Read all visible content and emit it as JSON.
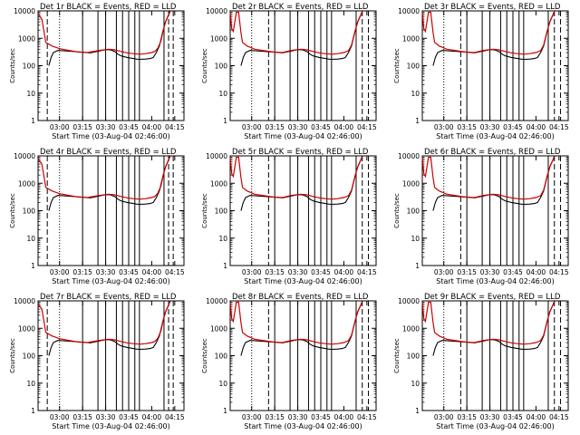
{
  "figure": {
    "time_ticks": [
      "03:00",
      "03:15",
      "03:30",
      "03:45",
      "04:00",
      "04:15"
    ],
    "y_ticks": [
      "1",
      "10",
      "100",
      "1000",
      "10000"
    ],
    "ylabel": "Counts/sec",
    "xlabel": "Start Time (03-Aug-04 02:46:00)",
    "colors": {
      "events": "#000000",
      "lld": "#cc0000"
    }
  },
  "chart_data": [
    {
      "type": "line",
      "title": "Det 1r BLACK = Events, RED = LLD",
      "xlabel": "Start Time (03-Aug-04 02:46:00)",
      "ylabel": "Counts/sec",
      "yscale": "log",
      "ylim": [
        1,
        10000
      ],
      "xlim_minutes": [
        0,
        95
      ],
      "series": [
        {
          "name": "Events",
          "color": "#000000"
        },
        {
          "name": "LLD",
          "color": "#cc0000"
        }
      ]
    },
    {
      "type": "line",
      "title": "Det 2r BLACK = Events, RED = LLD",
      "xlabel": "Start Time (03-Aug-04 02:46:00)",
      "ylabel": "Counts/sec",
      "yscale": "log",
      "ylim": [
        1,
        10000
      ],
      "xlim_minutes": [
        0,
        95
      ],
      "series": [
        {
          "name": "Events",
          "color": "#000000"
        },
        {
          "name": "LLD",
          "color": "#cc0000"
        }
      ]
    },
    {
      "type": "line",
      "title": "Det 3r BLACK = Events, RED = LLD",
      "xlabel": "Start Time (03-Aug-04 02:46:00)",
      "ylabel": "Counts/sec",
      "yscale": "log",
      "ylim": [
        1,
        10000
      ],
      "xlim_minutes": [
        0,
        95
      ],
      "series": [
        {
          "name": "Events",
          "color": "#000000"
        },
        {
          "name": "LLD",
          "color": "#cc0000"
        }
      ]
    },
    {
      "type": "line",
      "title": "Det 4r BLACK = Events, RED = LLD",
      "xlabel": "Start Time (03-Aug-04 02:46:00)",
      "ylabel": "Counts/sec",
      "yscale": "log",
      "ylim": [
        1,
        10000
      ],
      "xlim_minutes": [
        0,
        95
      ],
      "series": [
        {
          "name": "Events",
          "color": "#000000"
        },
        {
          "name": "LLD",
          "color": "#cc0000"
        }
      ]
    },
    {
      "type": "line",
      "title": "Det 5r BLACK = Events, RED = LLD",
      "xlabel": "Start Time (03-Aug-04 02:46:00)",
      "ylabel": "Counts/sec",
      "yscale": "log",
      "ylim": [
        1,
        10000
      ],
      "xlim_minutes": [
        0,
        95
      ],
      "series": [
        {
          "name": "Events",
          "color": "#000000"
        },
        {
          "name": "LLD",
          "color": "#cc0000"
        }
      ]
    },
    {
      "type": "line",
      "title": "Det 6r BLACK = Events, RED = LLD",
      "xlabel": "Start Time (03-Aug-04 02:46:00)",
      "ylabel": "Counts/sec",
      "yscale": "log",
      "ylim": [
        1,
        10000
      ],
      "xlim_minutes": [
        0,
        95
      ],
      "series": [
        {
          "name": "Events",
          "color": "#000000"
        },
        {
          "name": "LLD",
          "color": "#cc0000"
        }
      ]
    },
    {
      "type": "line",
      "title": "Det 7r BLACK = Events, RED = LLD",
      "xlabel": "Start Time (03-Aug-04 02:46:00)",
      "ylabel": "Counts/sec",
      "yscale": "log",
      "ylim": [
        1,
        10000
      ],
      "xlim_minutes": [
        0,
        95
      ],
      "series": [
        {
          "name": "Events",
          "color": "#000000"
        },
        {
          "name": "LLD",
          "color": "#cc0000"
        }
      ]
    },
    {
      "type": "line",
      "title": "Det 8r BLACK = Events, RED = LLD",
      "xlabel": "Start Time (03-Aug-04 02:46:00)",
      "ylabel": "Counts/sec",
      "yscale": "log",
      "ylim": [
        1,
        10000
      ],
      "xlim_minutes": [
        0,
        95
      ],
      "series": [
        {
          "name": "Events",
          "color": "#000000"
        },
        {
          "name": "LLD",
          "color": "#cc0000"
        }
      ]
    },
    {
      "type": "line",
      "title": "Det 9r BLACK = Events, RED = LLD",
      "xlabel": "Start Time (03-Aug-04 02:46:00)",
      "ylabel": "Counts/sec",
      "yscale": "log",
      "ylim": [
        1,
        10000
      ],
      "xlim_minutes": [
        0,
        95
      ],
      "series": [
        {
          "name": "Events",
          "color": "#000000"
        },
        {
          "name": "LLD",
          "color": "#cc0000"
        }
      ]
    }
  ]
}
